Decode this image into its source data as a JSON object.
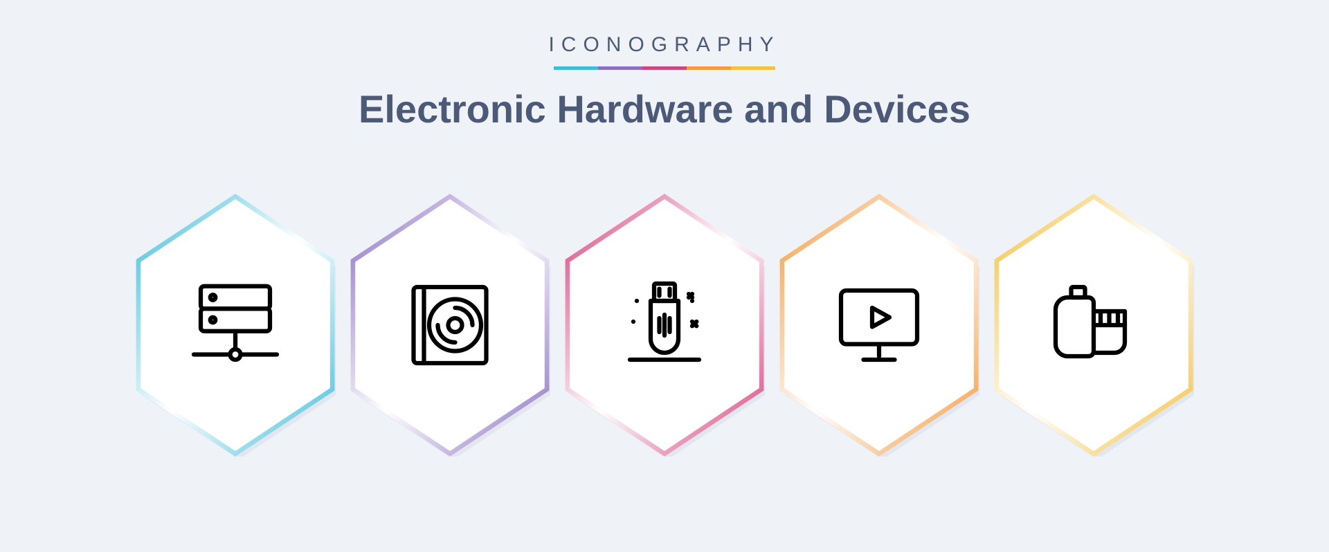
{
  "brand": "ICONOGRAPHY",
  "title": "Electronic Hardware and Devices",
  "divider_colors": [
    "#3fbdda",
    "#8b6fc1",
    "#d6427e",
    "#f39a3e",
    "#f3c13e"
  ],
  "hex": {
    "bg_fill": "#ffffff",
    "outer_shadow": "#e2e6ef",
    "stroke_width": 4
  },
  "icons": [
    {
      "name": "server-icon",
      "accent": "#3fbdda",
      "type": "server"
    },
    {
      "name": "cd-case-icon",
      "accent": "#8b6fc1",
      "type": "cd"
    },
    {
      "name": "usb-icon",
      "accent": "#d6427e",
      "type": "usb"
    },
    {
      "name": "monitor-icon",
      "accent": "#f39a3e",
      "type": "monitor"
    },
    {
      "name": "film-icon",
      "accent": "#f3c13e",
      "type": "film"
    }
  ],
  "icon_stroke": "#000000",
  "icon_stroke_width": 5
}
